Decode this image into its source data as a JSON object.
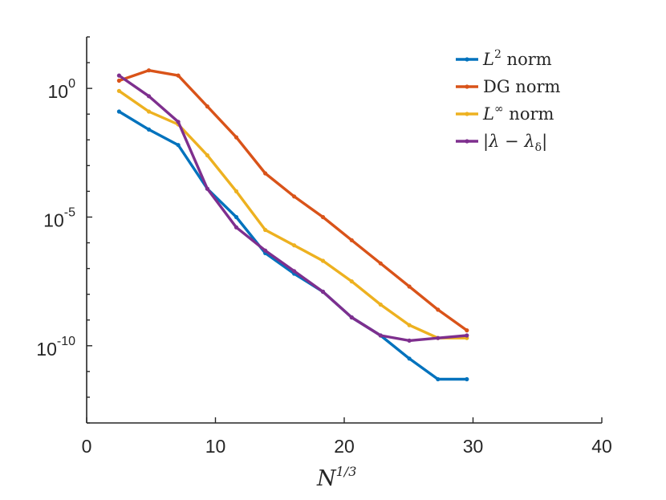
{
  "chart_data": {
    "type": "line",
    "title": "",
    "xlabel": "N^{1/3}",
    "xlabel_base": "N",
    "xlabel_exp": "1/3",
    "ylabel": "",
    "yscale": "log",
    "xlim": [
      0,
      40
    ],
    "ylim_exp": [
      -13,
      2
    ],
    "xticks": [
      0,
      10,
      20,
      30,
      40
    ],
    "xtick_labels": [
      "0",
      "10",
      "20",
      "30",
      "40"
    ],
    "yticks_exp": [
      0,
      -5,
      -10
    ],
    "ytick_labels": [
      {
        "base": "10",
        "exp": "0"
      },
      {
        "base": "10",
        "exp": "-5"
      },
      {
        "base": "10",
        "exp": "-10"
      }
    ],
    "grid": false,
    "legend_position": "top-right",
    "x": [
      2.52,
      4.83,
      7.11,
      9.37,
      11.62,
      13.87,
      16.11,
      18.35,
      20.58,
      22.82,
      25.05,
      27.28,
      29.52
    ],
    "series": [
      {
        "name": "L^2 norm",
        "label_main": "L",
        "label_sup": "2",
        "label_tail": " norm",
        "color": "#0072BD",
        "log10_values": [
          -0.9,
          -1.6,
          -2.2,
          -3.9,
          -5.0,
          -6.4,
          -7.2,
          -7.9,
          -8.9,
          -9.6,
          -10.5,
          -11.3,
          -11.3
        ]
      },
      {
        "name": "DG norm",
        "label_main": "DG norm",
        "color": "#D95319",
        "log10_values": [
          0.3,
          0.7,
          0.5,
          -0.7,
          -1.9,
          -3.3,
          -4.2,
          -5.0,
          -5.9,
          -6.8,
          -7.7,
          -8.6,
          -9.4
        ]
      },
      {
        "name": "L^infinity norm",
        "label_main": "L",
        "label_sup": "∞",
        "label_tail": " norm",
        "color": "#EDB120",
        "log10_values": [
          -0.1,
          -0.9,
          -1.4,
          -2.6,
          -4.0,
          -5.5,
          -6.1,
          -6.7,
          -7.5,
          -8.4,
          -9.2,
          -9.7,
          -9.7
        ]
      },
      {
        "name": "|λ − λδ|",
        "label_main": "|λ − λ",
        "label_sub": "δ",
        "label_tail": "|",
        "color": "#7E2F8E",
        "log10_values": [
          0.5,
          -0.3,
          -1.3,
          -3.9,
          -5.4,
          -6.3,
          -7.1,
          -7.9,
          -8.9,
          -9.6,
          -9.8,
          -9.7,
          -9.6
        ]
      }
    ]
  }
}
